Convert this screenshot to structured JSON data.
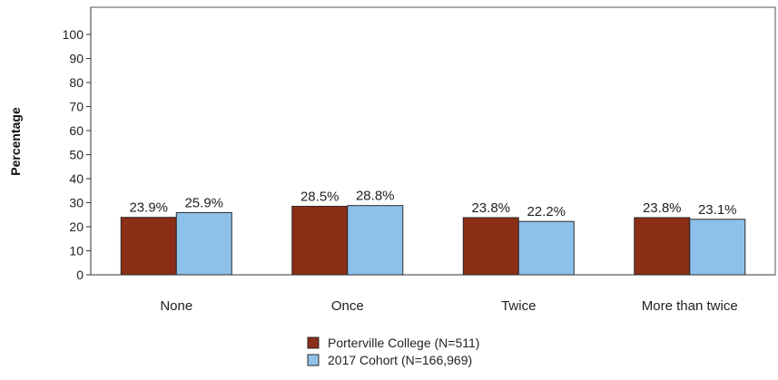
{
  "chart_data": {
    "type": "bar",
    "categories": [
      "None",
      "Once",
      "Twice",
      "More than twice"
    ],
    "series": [
      {
        "name": "Porterville College (N=511)",
        "values": [
          23.9,
          28.5,
          23.8,
          23.8
        ],
        "labels": [
          "23.9%",
          "28.5%",
          "23.8%",
          "23.8%"
        ],
        "color": "#8B2E16"
      },
      {
        "name": "2017 Cohort (N=166,969)",
        "values": [
          25.9,
          28.8,
          22.2,
          23.1
        ],
        "labels": [
          "25.9%",
          "28.8%",
          "22.2%",
          "23.1%"
        ],
        "color": "#8EC1EA"
      }
    ],
    "ylabel": "Percentage",
    "xlabel": "",
    "ylim": [
      0,
      100
    ],
    "yticks": [
      "0",
      "10",
      "20",
      "30",
      "40",
      "50",
      "60",
      "70",
      "80",
      "90",
      "100"
    ],
    "grid": false,
    "legend_position": "bottom-center"
  }
}
